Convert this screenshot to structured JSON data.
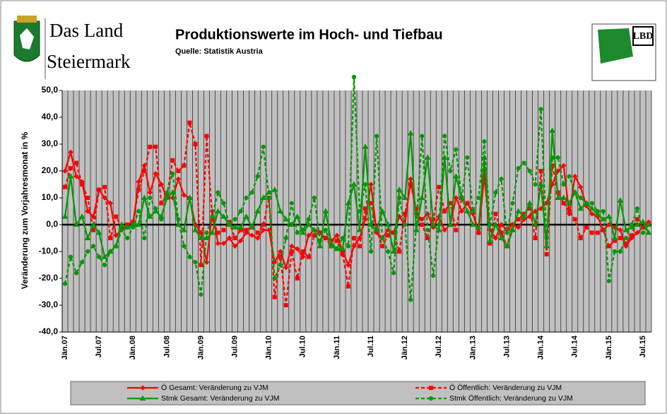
{
  "header": {
    "line1": "Das Land",
    "line2": "Steiermark",
    "badge": "LBD"
  },
  "chart_data": {
    "type": "line",
    "title": "Produktionswerte im Hoch- und Tiefbau",
    "subtitle": "Quelle: Statistik Austria",
    "y_label": "Veränderung zum Vorjahresmonat in %",
    "categories": [
      "Jän.07",
      null,
      null,
      null,
      null,
      null,
      "Jul.07",
      null,
      null,
      null,
      null,
      null,
      "Jän.08",
      null,
      null,
      null,
      null,
      null,
      "Jul.08",
      null,
      null,
      null,
      null,
      null,
      "Jän.09",
      null,
      null,
      null,
      null,
      null,
      "Jul.09",
      null,
      null,
      null,
      null,
      null,
      "Jän.10",
      null,
      null,
      null,
      null,
      null,
      "Jul.10",
      null,
      null,
      null,
      null,
      null,
      "Jän.11",
      null,
      null,
      null,
      null,
      null,
      "Jul.11",
      null,
      null,
      null,
      null,
      null,
      "Jän.12",
      null,
      null,
      null,
      null,
      null,
      "Jul.12",
      null,
      null,
      null,
      null,
      null,
      "Jän.13",
      null,
      null,
      null,
      null,
      null,
      "Jul.13",
      null,
      null,
      null,
      null,
      null,
      "Jän.14",
      null,
      null,
      null,
      null,
      null,
      "Jul.14",
      null,
      null,
      null,
      null,
      null,
      "Jän.15",
      null,
      null,
      null,
      null,
      null,
      "Jul.15",
      null
    ],
    "ylim": [
      -40,
      50
    ],
    "yticks": [
      {
        "value": -40,
        "label": "-40,0"
      },
      {
        "value": -30,
        "label": "-30,0"
      },
      {
        "value": -20,
        "label": "-20,0"
      },
      {
        "value": -10,
        "label": "-10,0"
      },
      {
        "value": 0,
        "label": "0,0"
      },
      {
        "value": 10,
        "label": "10,0"
      },
      {
        "value": 20,
        "label": "20,0"
      },
      {
        "value": 30,
        "label": "30,0"
      },
      {
        "value": 40,
        "label": "40,0"
      },
      {
        "value": 50,
        "label": "50,0"
      }
    ],
    "series": [
      {
        "name": "Ö Gesamt: Veränderung zu VJM",
        "color": "#ff0000",
        "dashed": false,
        "marker": "diamond",
        "values": [
          20,
          27,
          18,
          16,
          5,
          3,
          13,
          10,
          8,
          -4,
          -2,
          -1,
          0,
          16,
          22,
          12,
          19,
          15,
          10,
          10,
          17,
          11,
          10,
          0,
          -3,
          -14,
          5,
          -7,
          -7,
          -5,
          -8,
          -6,
          -3,
          -4,
          -5,
          -2,
          -2,
          -14,
          -10,
          -16,
          -8,
          -9,
          -12,
          -4,
          -2,
          -3,
          -5,
          -6,
          -4,
          -10,
          -15,
          -8,
          -5,
          2,
          15,
          -3,
          -5,
          -2,
          -3,
          3,
          0,
          17,
          4,
          2,
          4,
          -1,
          3,
          -2,
          0,
          10,
          5,
          8,
          4,
          -3,
          18,
          -2,
          -5,
          0,
          -2,
          0,
          -1,
          2,
          3,
          5,
          6,
          8,
          15,
          20,
          22,
          4,
          18,
          14,
          7,
          4,
          3,
          -2,
          0,
          -1,
          -2,
          -8,
          -5,
          -3,
          -1,
          1
        ]
      },
      {
        "name": "Ö Öffentlich: Veränderung zu VJM",
        "color": "#ff0000",
        "dashed": true,
        "marker": "square",
        "values": [
          14,
          21,
          23,
          15,
          10,
          -2,
          13,
          14,
          -5,
          3,
          -1,
          0,
          1,
          13,
          20,
          29,
          29,
          8,
          11,
          24,
          20,
          22,
          38,
          30,
          -15,
          33,
          2,
          -3,
          -2,
          1,
          -5,
          -2,
          -2,
          -1,
          -3,
          0,
          10,
          -27,
          -12,
          -30,
          -10,
          -20,
          -10,
          -12,
          -4,
          -3,
          -5,
          -8,
          -6,
          -11,
          -23,
          -5,
          -8,
          6,
          8,
          -2,
          -8,
          -4,
          -3,
          -10,
          4,
          15,
          6,
          0,
          -5,
          2,
          14,
          5,
          8,
          -2,
          10,
          8,
          5,
          -3,
          20,
          -7,
          4,
          -3,
          -8,
          0,
          2,
          4,
          6,
          -5,
          20,
          -11,
          22,
          12,
          8,
          5,
          2,
          -5,
          -1,
          -3,
          -3,
          -2,
          -8,
          -6,
          -5,
          -7,
          -4,
          2,
          -1,
          0
        ]
      },
      {
        "name": "Stmk Gesamt: Veränderung zu VJM",
        "color": "#009900",
        "dashed": false,
        "marker": "triangle",
        "values": [
          3,
          18,
          0,
          3,
          -5,
          0,
          -3,
          -12,
          -10,
          -8,
          0,
          -1,
          0,
          0,
          10,
          3,
          5,
          3,
          10,
          12,
          0,
          -2,
          10,
          -2,
          -5,
          -5,
          -3,
          5,
          3,
          0,
          -1,
          -1,
          3,
          -1,
          5,
          10,
          12,
          13,
          5,
          2,
          0,
          3,
          -3,
          0,
          -2,
          -8,
          5,
          -7,
          -9,
          -9,
          8,
          15,
          -2,
          29,
          0,
          -2,
          5,
          0,
          -10,
          13,
          10,
          34,
          -2,
          10,
          25,
          0,
          -2,
          25,
          0,
          18,
          10,
          5,
          0,
          -1,
          25,
          -6,
          0,
          -5,
          -8,
          -2,
          5,
          3,
          8,
          0,
          15,
          -8,
          35,
          10,
          10,
          8,
          12,
          6,
          8,
          6,
          4,
          2,
          3,
          -5,
          9,
          -2,
          -1,
          0,
          1,
          -3
        ]
      },
      {
        "name": "Stmk Öffentlich: Veränderung zu VJM",
        "color": "#009900",
        "dashed": true,
        "marker": "circle",
        "values": [
          -22,
          -12,
          -18,
          -14,
          -10,
          -8,
          -12,
          -15,
          -10,
          -8,
          -2,
          -5,
          -1,
          5,
          -5,
          10,
          6,
          2,
          12,
          19,
          2,
          -8,
          -12,
          -14,
          -26,
          -3,
          3,
          12,
          8,
          0,
          2,
          5,
          10,
          12,
          18,
          29,
          10,
          -20,
          -15,
          -5,
          8,
          -3,
          -2,
          2,
          10,
          -6,
          -2,
          -8,
          -9,
          -5,
          -8,
          55,
          5,
          15,
          -10,
          33,
          -5,
          -10,
          -18,
          10,
          0,
          -28,
          0,
          33,
          -2,
          -19,
          0,
          33,
          20,
          28,
          10,
          25,
          5,
          10,
          31,
          0,
          12,
          17,
          -3,
          8,
          21,
          23,
          20,
          15,
          43,
          -5,
          25,
          25,
          15,
          18,
          12,
          10,
          8,
          8,
          5,
          5,
          -21,
          -10,
          -10,
          -5,
          0,
          6,
          -3,
          0
        ]
      }
    ]
  }
}
